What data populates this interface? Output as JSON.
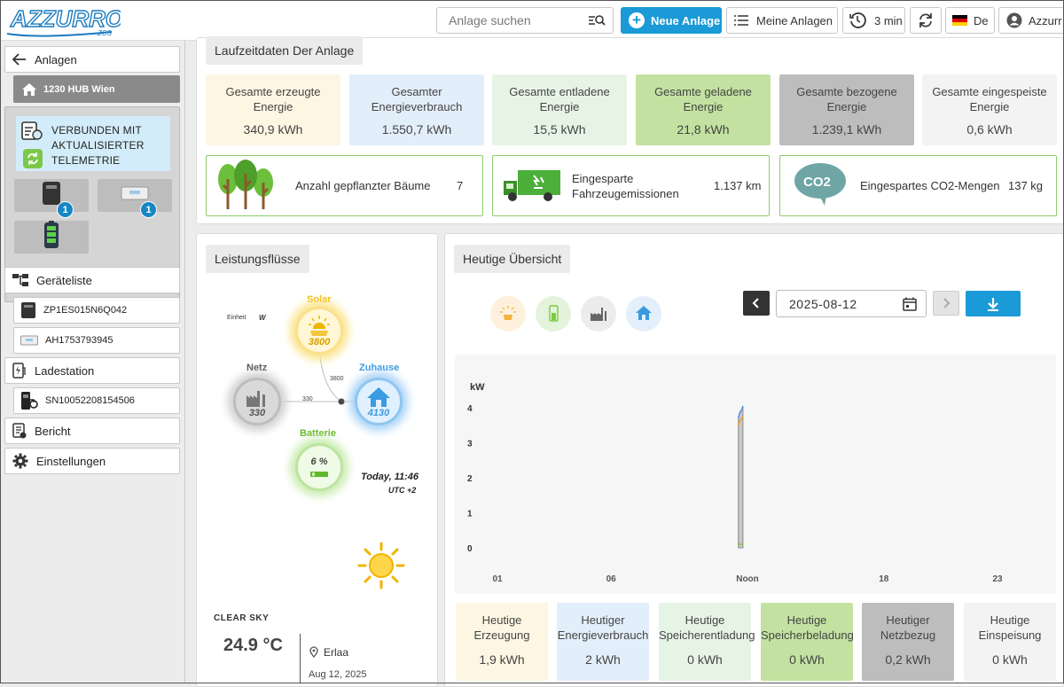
{
  "brand": {
    "name": "AZZURRO",
    "sub": "ZCS"
  },
  "topbar": {
    "search_placeholder": "Anlage suchen",
    "new_label": "Neue Anlage",
    "mine_label": "Meine Anlagen",
    "timer_label": "3 min",
    "lang_label": "De",
    "user_label": "Azzurr"
  },
  "sidebar": {
    "back_label": "Anlagen",
    "hub_label": "1230 HUB Wien",
    "connection_lines": [
      "VERBUNDEN MIT",
      "AKTUALISIERTER",
      "TELEMETRIE"
    ],
    "device_badges": [
      "1",
      "1"
    ],
    "devices_label": "Geräteliste",
    "device1": "ZP1ES015N6Q042",
    "device2": "AH1753793945",
    "charging_label": "Ladestation",
    "charger": "SN10052208154506",
    "report_label": "Bericht",
    "settings_label": "Einstellungen"
  },
  "runtime": {
    "title": "Laufzeitdaten Der Anlage",
    "stats": [
      {
        "label": "Gesamte erzeugte Energie",
        "value": "340,9 kWh",
        "color": "#fdf6e3"
      },
      {
        "label": "Gesamter Energieverbrauch",
        "value": "1.550,7 kWh",
        "color": "#e3eefb"
      },
      {
        "label": "Gesamte entladene Energie",
        "value": "15,5 kWh",
        "color": "#e6f4e6"
      },
      {
        "label": "Gesamte geladene Energie",
        "value": "21,8 kWh",
        "color": "#c3e2a1"
      },
      {
        "label": "Gesamte bezogene Energie",
        "value": "1.239,1 kWh",
        "color": "#bdbdbd"
      },
      {
        "label": "Gesamte eingespeiste Energie",
        "value": "0,6 kWh",
        "color": "#f3f3f3"
      }
    ],
    "eco": {
      "trees_label": "Anzahl gepflanzter Bäume",
      "trees_value": "7",
      "vehicle_label_1": "Eingesparte",
      "vehicle_label_2": "Fahrzeugemissionen",
      "vehicle_value": "1.137 km",
      "co2_label": "Eingespartes CO2-Mengen",
      "co2_value": "137 kg",
      "co2_bubble": "CO2"
    }
  },
  "flows": {
    "title": "Leistungsflüsse",
    "unit_label": "Einheit",
    "unit_value": "W",
    "solar_label": "Solar",
    "solar_value": "3800",
    "grid_label": "Netz",
    "grid_value": "330",
    "home_label": "Zuhause",
    "home_value": "4130",
    "battery_label": "Batterie",
    "battery_value": "6 %",
    "line_solar": "3800",
    "line_grid": "330",
    "time_label": "Today, 11:46",
    "tz_label": "UTC +2",
    "colors": {
      "solar": "#f5b800",
      "grid": "#9a9a9a",
      "home": "#3a9be0",
      "battery": "#7ccc3a"
    }
  },
  "weather": {
    "condition": "CLEAR SKY",
    "temp": "24.9 °C",
    "location": "Erlaa",
    "date": "Aug 12, 2025"
  },
  "overview": {
    "title": "Heutige Übersicht",
    "date": "2025-08-12",
    "stats": [
      {
        "label": "Heutige Erzeugung",
        "value": "1,9 kWh",
        "color": "#fdf6e3"
      },
      {
        "label": "Heutiger Energieverbrauch",
        "value": "2 kWh",
        "color": "#e3eefb"
      },
      {
        "label": "Heutige Speicherentladung",
        "value": "0 kWh",
        "color": "#e6f4e6"
      },
      {
        "label": "Heutige Speicherbeladung",
        "value": "0 kWh",
        "color": "#c3e2a1"
      },
      {
        "label": "Heutiger Netzbezug",
        "value": "0,2 kWh",
        "color": "#bdbdbd"
      },
      {
        "label": "Heutige Einspeisung",
        "value": "0 kWh",
        "color": "#f3f3f3"
      }
    ]
  },
  "chart_data": {
    "type": "area",
    "title": "",
    "xlabel": "",
    "ylabel": "kW",
    "ylim": [
      0,
      4
    ],
    "yticks": [
      "0",
      "1",
      "2",
      "3",
      "4"
    ],
    "xticks": [
      "01",
      "06",
      "Noon",
      "18",
      "23"
    ],
    "x": [
      11.6,
      11.65,
      11.7,
      11.75,
      11.8
    ],
    "series": [
      {
        "name": "",
        "color": "#5b8def",
        "values": [
          3.7,
          3.85,
          3.9,
          3.95,
          4.05
        ]
      },
      {
        "name": "",
        "color": "#f0a030",
        "values": [
          3.5,
          3.6,
          3.65,
          3.7,
          3.75
        ]
      },
      {
        "name": "",
        "color": "#7ccc3a",
        "values": [
          0.1,
          0.1,
          0.1,
          0.1,
          0.1
        ]
      }
    ]
  }
}
